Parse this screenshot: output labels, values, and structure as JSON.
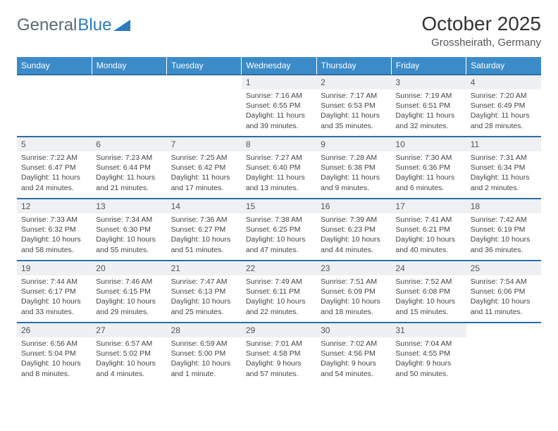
{
  "brand": {
    "name_a": "General",
    "name_b": "Blue",
    "accent": "#2b7bbf",
    "gray": "#5a6a78"
  },
  "title": "October 2025",
  "location": "Grossheirath, Germany",
  "colors": {
    "header_bg": "#3b8bc9",
    "rule": "#2a6ea8",
    "daynum_bg": "#eef0f2",
    "text": "#444"
  },
  "day_headers": [
    "Sunday",
    "Monday",
    "Tuesday",
    "Wednesday",
    "Thursday",
    "Friday",
    "Saturday"
  ],
  "weeks": [
    [
      null,
      null,
      null,
      {
        "n": "1",
        "sr": "7:16 AM",
        "ss": "6:55 PM",
        "dl": "11 hours and 39 minutes."
      },
      {
        "n": "2",
        "sr": "7:17 AM",
        "ss": "6:53 PM",
        "dl": "11 hours and 35 minutes."
      },
      {
        "n": "3",
        "sr": "7:19 AM",
        "ss": "6:51 PM",
        "dl": "11 hours and 32 minutes."
      },
      {
        "n": "4",
        "sr": "7:20 AM",
        "ss": "6:49 PM",
        "dl": "11 hours and 28 minutes."
      }
    ],
    [
      {
        "n": "5",
        "sr": "7:22 AM",
        "ss": "6:47 PM",
        "dl": "11 hours and 24 minutes."
      },
      {
        "n": "6",
        "sr": "7:23 AM",
        "ss": "6:44 PM",
        "dl": "11 hours and 21 minutes."
      },
      {
        "n": "7",
        "sr": "7:25 AM",
        "ss": "6:42 PM",
        "dl": "11 hours and 17 minutes."
      },
      {
        "n": "8",
        "sr": "7:27 AM",
        "ss": "6:40 PM",
        "dl": "11 hours and 13 minutes."
      },
      {
        "n": "9",
        "sr": "7:28 AM",
        "ss": "6:38 PM",
        "dl": "11 hours and 9 minutes."
      },
      {
        "n": "10",
        "sr": "7:30 AM",
        "ss": "6:36 PM",
        "dl": "11 hours and 6 minutes."
      },
      {
        "n": "11",
        "sr": "7:31 AM",
        "ss": "6:34 PM",
        "dl": "11 hours and 2 minutes."
      }
    ],
    [
      {
        "n": "12",
        "sr": "7:33 AM",
        "ss": "6:32 PM",
        "dl": "10 hours and 58 minutes."
      },
      {
        "n": "13",
        "sr": "7:34 AM",
        "ss": "6:30 PM",
        "dl": "10 hours and 55 minutes."
      },
      {
        "n": "14",
        "sr": "7:36 AM",
        "ss": "6:27 PM",
        "dl": "10 hours and 51 minutes."
      },
      {
        "n": "15",
        "sr": "7:38 AM",
        "ss": "6:25 PM",
        "dl": "10 hours and 47 minutes."
      },
      {
        "n": "16",
        "sr": "7:39 AM",
        "ss": "6:23 PM",
        "dl": "10 hours and 44 minutes."
      },
      {
        "n": "17",
        "sr": "7:41 AM",
        "ss": "6:21 PM",
        "dl": "10 hours and 40 minutes."
      },
      {
        "n": "18",
        "sr": "7:42 AM",
        "ss": "6:19 PM",
        "dl": "10 hours and 36 minutes."
      }
    ],
    [
      {
        "n": "19",
        "sr": "7:44 AM",
        "ss": "6:17 PM",
        "dl": "10 hours and 33 minutes."
      },
      {
        "n": "20",
        "sr": "7:46 AM",
        "ss": "6:15 PM",
        "dl": "10 hours and 29 minutes."
      },
      {
        "n": "21",
        "sr": "7:47 AM",
        "ss": "6:13 PM",
        "dl": "10 hours and 25 minutes."
      },
      {
        "n": "22",
        "sr": "7:49 AM",
        "ss": "6:11 PM",
        "dl": "10 hours and 22 minutes."
      },
      {
        "n": "23",
        "sr": "7:51 AM",
        "ss": "6:09 PM",
        "dl": "10 hours and 18 minutes."
      },
      {
        "n": "24",
        "sr": "7:52 AM",
        "ss": "6:08 PM",
        "dl": "10 hours and 15 minutes."
      },
      {
        "n": "25",
        "sr": "7:54 AM",
        "ss": "6:06 PM",
        "dl": "10 hours and 11 minutes."
      }
    ],
    [
      {
        "n": "26",
        "sr": "6:56 AM",
        "ss": "5:04 PM",
        "dl": "10 hours and 8 minutes."
      },
      {
        "n": "27",
        "sr": "6:57 AM",
        "ss": "5:02 PM",
        "dl": "10 hours and 4 minutes."
      },
      {
        "n": "28",
        "sr": "6:59 AM",
        "ss": "5:00 PM",
        "dl": "10 hours and 1 minute."
      },
      {
        "n": "29",
        "sr": "7:01 AM",
        "ss": "4:58 PM",
        "dl": "9 hours and 57 minutes."
      },
      {
        "n": "30",
        "sr": "7:02 AM",
        "ss": "4:56 PM",
        "dl": "9 hours and 54 minutes."
      },
      {
        "n": "31",
        "sr": "7:04 AM",
        "ss": "4:55 PM",
        "dl": "9 hours and 50 minutes."
      },
      null
    ]
  ],
  "labels": {
    "sunrise": "Sunrise:",
    "sunset": "Sunset:",
    "daylight": "Daylight:"
  }
}
